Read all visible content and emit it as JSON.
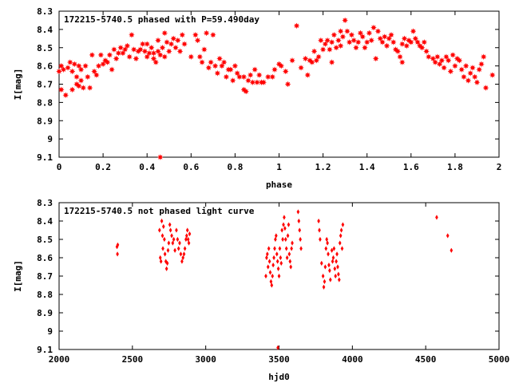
{
  "chart_data": [
    {
      "type": "scatter",
      "title": "172215-5740.5 phased with P=59.490day",
      "xlabel": "phase",
      "ylabel": "I[mag]",
      "xlim": [
        0,
        2
      ],
      "ylim": [
        9.1,
        8.3
      ],
      "y_inverted": true,
      "xticks": [
        "0",
        "0.2",
        "0.4",
        "0.6",
        "0.8",
        "1",
        "1.2",
        "1.4",
        "1.6",
        "1.8",
        "2"
      ],
      "yticks": [
        "8.3",
        "8.4",
        "8.5",
        "8.6",
        "8.7",
        "8.8",
        "8.9",
        "9",
        "9.1"
      ],
      "marker": "star",
      "color": "#ff0000",
      "points": [
        [
          0.0,
          8.63
        ],
        [
          0.01,
          8.6
        ],
        [
          0.01,
          8.73
        ],
        [
          0.02,
          8.62
        ],
        [
          0.03,
          8.76
        ],
        [
          0.04,
          8.61
        ],
        [
          0.05,
          8.58
        ],
        [
          0.06,
          8.63
        ],
        [
          0.06,
          8.73
        ],
        [
          0.07,
          8.59
        ],
        [
          0.08,
          8.66
        ],
        [
          0.08,
          8.7
        ],
        [
          0.09,
          8.6
        ],
        [
          0.09,
          8.71
        ],
        [
          0.1,
          8.62
        ],
        [
          0.1,
          8.68
        ],
        [
          0.11,
          8.72
        ],
        [
          0.12,
          8.6
        ],
        [
          0.13,
          8.66
        ],
        [
          0.14,
          8.72
        ],
        [
          0.15,
          8.54
        ],
        [
          0.16,
          8.63
        ],
        [
          0.17,
          8.65
        ],
        [
          0.18,
          8.6
        ],
        [
          0.19,
          8.54
        ],
        [
          0.2,
          8.59
        ],
        [
          0.21,
          8.57
        ],
        [
          0.22,
          8.58
        ],
        [
          0.23,
          8.54
        ],
        [
          0.24,
          8.62
        ],
        [
          0.25,
          8.51
        ],
        [
          0.26,
          8.56
        ],
        [
          0.27,
          8.53
        ],
        [
          0.28,
          8.5
        ],
        [
          0.29,
          8.53
        ],
        [
          0.3,
          8.51
        ],
        [
          0.31,
          8.49
        ],
        [
          0.32,
          8.55
        ],
        [
          0.33,
          8.43
        ],
        [
          0.34,
          8.51
        ],
        [
          0.35,
          8.56
        ],
        [
          0.36,
          8.52
        ],
        [
          0.37,
          8.51
        ],
        [
          0.38,
          8.48
        ],
        [
          0.39,
          8.52
        ],
        [
          0.4,
          8.55
        ],
        [
          0.4,
          8.48
        ],
        [
          0.41,
          8.53
        ],
        [
          0.42,
          8.5
        ],
        [
          0.43,
          8.56
        ],
        [
          0.43,
          8.53
        ],
        [
          0.44,
          8.58
        ],
        [
          0.45,
          8.52
        ],
        [
          0.45,
          8.46
        ],
        [
          0.46,
          8.54
        ],
        [
          0.46,
          9.1
        ],
        [
          0.47,
          8.5
        ],
        [
          0.48,
          8.42
        ],
        [
          0.48,
          8.55
        ],
        [
          0.49,
          8.47
        ],
        [
          0.5,
          8.52
        ],
        [
          0.51,
          8.48
        ],
        [
          0.52,
          8.45
        ],
        [
          0.53,
          8.5
        ],
        [
          0.54,
          8.46
        ],
        [
          0.55,
          8.52
        ],
        [
          0.56,
          8.43
        ],
        [
          0.57,
          8.48
        ],
        [
          0.6,
          8.55
        ],
        [
          0.62,
          8.43
        ],
        [
          0.63,
          8.46
        ],
        [
          0.64,
          8.55
        ],
        [
          0.65,
          8.58
        ],
        [
          0.66,
          8.51
        ],
        [
          0.67,
          8.42
        ],
        [
          0.68,
          8.61
        ],
        [
          0.69,
          8.58
        ],
        [
          0.7,
          8.43
        ],
        [
          0.71,
          8.6
        ],
        [
          0.72,
          8.64
        ],
        [
          0.73,
          8.56
        ],
        [
          0.74,
          8.6
        ],
        [
          0.75,
          8.58
        ],
        [
          0.76,
          8.66
        ],
        [
          0.77,
          8.62
        ],
        [
          0.78,
          8.62
        ],
        [
          0.79,
          8.68
        ],
        [
          0.8,
          8.6
        ],
        [
          0.81,
          8.64
        ],
        [
          0.82,
          8.66
        ],
        [
          0.84,
          8.66
        ],
        [
          0.84,
          8.73
        ],
        [
          0.85,
          8.74
        ],
        [
          0.86,
          8.68
        ],
        [
          0.87,
          8.65
        ],
        [
          0.88,
          8.69
        ],
        [
          0.89,
          8.62
        ],
        [
          0.9,
          8.69
        ],
        [
          0.91,
          8.65
        ],
        [
          0.92,
          8.69
        ],
        [
          0.93,
          8.69
        ],
        [
          0.95,
          8.66
        ],
        [
          0.97,
          8.66
        ],
        [
          0.98,
          8.62
        ],
        [
          1.0,
          8.59
        ],
        [
          1.01,
          8.6
        ],
        [
          1.03,
          8.63
        ],
        [
          1.04,
          8.7
        ],
        [
          1.06,
          8.57
        ],
        [
          1.08,
          8.38
        ],
        [
          1.1,
          8.61
        ],
        [
          1.12,
          8.56
        ],
        [
          1.13,
          8.65
        ],
        [
          1.14,
          8.57
        ],
        [
          1.15,
          8.58
        ],
        [
          1.16,
          8.52
        ],
        [
          1.17,
          8.57
        ],
        [
          1.18,
          8.55
        ],
        [
          1.19,
          8.46
        ],
        [
          1.2,
          8.51
        ],
        [
          1.21,
          8.48
        ],
        [
          1.22,
          8.46
        ],
        [
          1.23,
          8.51
        ],
        [
          1.24,
          8.47
        ],
        [
          1.24,
          8.58
        ],
        [
          1.25,
          8.43
        ],
        [
          1.26,
          8.5
        ],
        [
          1.27,
          8.46
        ],
        [
          1.28,
          8.41
        ],
        [
          1.28,
          8.49
        ],
        [
          1.29,
          8.44
        ],
        [
          1.3,
          8.35
        ],
        [
          1.31,
          8.41
        ],
        [
          1.32,
          8.47
        ],
        [
          1.33,
          8.43
        ],
        [
          1.34,
          8.46
        ],
        [
          1.35,
          8.5
        ],
        [
          1.36,
          8.47
        ],
        [
          1.37,
          8.42
        ],
        [
          1.38,
          8.44
        ],
        [
          1.39,
          8.5
        ],
        [
          1.4,
          8.47
        ],
        [
          1.41,
          8.42
        ],
        [
          1.42,
          8.46
        ],
        [
          1.43,
          8.39
        ],
        [
          1.44,
          8.56
        ],
        [
          1.45,
          8.41
        ],
        [
          1.46,
          8.45
        ],
        [
          1.47,
          8.47
        ],
        [
          1.48,
          8.44
        ],
        [
          1.49,
          8.49
        ],
        [
          1.5,
          8.45
        ],
        [
          1.51,
          8.43
        ],
        [
          1.52,
          8.47
        ],
        [
          1.53,
          8.51
        ],
        [
          1.54,
          8.52
        ],
        [
          1.55,
          8.55
        ],
        [
          1.56,
          8.48
        ],
        [
          1.56,
          8.58
        ],
        [
          1.57,
          8.45
        ],
        [
          1.58,
          8.49
        ],
        [
          1.59,
          8.46
        ],
        [
          1.6,
          8.47
        ],
        [
          1.61,
          8.41
        ],
        [
          1.62,
          8.45
        ],
        [
          1.63,
          8.47
        ],
        [
          1.64,
          8.49
        ],
        [
          1.65,
          8.5
        ],
        [
          1.66,
          8.47
        ],
        [
          1.67,
          8.52
        ],
        [
          1.68,
          8.55
        ],
        [
          1.7,
          8.56
        ],
        [
          1.71,
          8.58
        ],
        [
          1.72,
          8.55
        ],
        [
          1.73,
          8.59
        ],
        [
          1.74,
          8.57
        ],
        [
          1.75,
          8.61
        ],
        [
          1.76,
          8.55
        ],
        [
          1.77,
          8.57
        ],
        [
          1.78,
          8.63
        ],
        [
          1.79,
          8.54
        ],
        [
          1.8,
          8.6
        ],
        [
          1.81,
          8.56
        ],
        [
          1.82,
          8.57
        ],
        [
          1.83,
          8.62
        ],
        [
          1.84,
          8.66
        ],
        [
          1.85,
          8.6
        ],
        [
          1.86,
          8.68
        ],
        [
          1.87,
          8.64
        ],
        [
          1.88,
          8.61
        ],
        [
          1.89,
          8.66
        ],
        [
          1.9,
          8.69
        ],
        [
          1.91,
          8.62
        ],
        [
          1.92,
          8.59
        ],
        [
          1.93,
          8.55
        ],
        [
          1.94,
          8.72
        ],
        [
          1.97,
          8.65
        ]
      ]
    },
    {
      "type": "scatter",
      "title": "172215-5740.5 not phased light curve",
      "xlabel": "hjd0",
      "ylabel": "I[mag]",
      "xlim": [
        2000,
        5000
      ],
      "ylim": [
        9.1,
        8.3
      ],
      "y_inverted": true,
      "xticks": [
        "2000",
        "2500",
        "3000",
        "3500",
        "4000",
        "4500",
        "5000"
      ],
      "yticks": [
        "8.3",
        "8.4",
        "8.5",
        "8.6",
        "8.7",
        "8.8",
        "8.9",
        "9",
        "9.1"
      ],
      "marker": "diamond",
      "color": "#ff0000",
      "points": [
        [
          2395,
          8.54
        ],
        [
          2398,
          8.58
        ],
        [
          2400,
          8.53
        ],
        [
          2685,
          8.45
        ],
        [
          2690,
          8.6
        ],
        [
          2695,
          8.62
        ],
        [
          2700,
          8.4
        ],
        [
          2705,
          8.48
        ],
        [
          2708,
          8.55
        ],
        [
          2712,
          8.43
        ],
        [
          2718,
          8.5
        ],
        [
          2722,
          8.58
        ],
        [
          2728,
          8.62
        ],
        [
          2733,
          8.66
        ],
        [
          2738,
          8.63
        ],
        [
          2743,
          8.56
        ],
        [
          2748,
          8.52
        ],
        [
          2755,
          8.42
        ],
        [
          2760,
          8.45
        ],
        [
          2768,
          8.48
        ],
        [
          2775,
          8.52
        ],
        [
          2782,
          8.5
        ],
        [
          2790,
          8.56
        ],
        [
          2800,
          8.45
        ],
        [
          2808,
          8.5
        ],
        [
          2815,
          8.55
        ],
        [
          2822,
          8.52
        ],
        [
          2830,
          8.58
        ],
        [
          2838,
          8.62
        ],
        [
          2845,
          8.6
        ],
        [
          2852,
          8.58
        ],
        [
          2858,
          8.55
        ],
        [
          2865,
          8.5
        ],
        [
          2870,
          8.48
        ],
        [
          2875,
          8.45
        ],
        [
          2880,
          8.5
        ],
        [
          2885,
          8.52
        ],
        [
          2890,
          8.47
        ],
        [
          3410,
          8.7
        ],
        [
          3415,
          8.6
        ],
        [
          3420,
          8.58
        ],
        [
          3425,
          8.65
        ],
        [
          3430,
          8.55
        ],
        [
          3435,
          8.62
        ],
        [
          3440,
          8.68
        ],
        [
          3445,
          8.73
        ],
        [
          3450,
          8.75
        ],
        [
          3455,
          8.7
        ],
        [
          3460,
          8.64
        ],
        [
          3465,
          8.6
        ],
        [
          3470,
          8.55
        ],
        [
          3475,
          8.5
        ],
        [
          3480,
          8.48
        ],
        [
          3485,
          8.58
        ],
        [
          3490,
          8.62
        ],
        [
          3492,
          9.09
        ],
        [
          3495,
          8.66
        ],
        [
          3500,
          8.7
        ],
        [
          3505,
          8.55
        ],
        [
          3510,
          8.6
        ],
        [
          3515,
          8.63
        ],
        [
          3520,
          8.45
        ],
        [
          3525,
          8.5
        ],
        [
          3530,
          8.42
        ],
        [
          3535,
          8.38
        ],
        [
          3540,
          8.44
        ],
        [
          3545,
          8.5
        ],
        [
          3550,
          8.55
        ],
        [
          3555,
          8.6
        ],
        [
          3560,
          8.48
        ],
        [
          3565,
          8.42
        ],
        [
          3570,
          8.58
        ],
        [
          3575,
          8.62
        ],
        [
          3580,
          8.65
        ],
        [
          3585,
          8.55
        ],
        [
          3590,
          8.52
        ],
        [
          3630,
          8.35
        ],
        [
          3635,
          8.4
        ],
        [
          3640,
          8.45
        ],
        [
          3645,
          8.5
        ],
        [
          3650,
          8.55
        ],
        [
          3770,
          8.4
        ],
        [
          3775,
          8.45
        ],
        [
          3780,
          8.5
        ],
        [
          3790,
          8.63
        ],
        [
          3800,
          8.7
        ],
        [
          3805,
          8.76
        ],
        [
          3810,
          8.73
        ],
        [
          3815,
          8.65
        ],
        [
          3820,
          8.55
        ],
        [
          3825,
          8.5
        ],
        [
          3830,
          8.52
        ],
        [
          3835,
          8.58
        ],
        [
          3840,
          8.64
        ],
        [
          3845,
          8.67
        ],
        [
          3850,
          8.72
        ],
        [
          3860,
          8.56
        ],
        [
          3865,
          8.62
        ],
        [
          3870,
          8.6
        ],
        [
          3875,
          8.55
        ],
        [
          3880,
          8.66
        ],
        [
          3885,
          8.7
        ],
        [
          3890,
          8.62
        ],
        [
          3895,
          8.58
        ],
        [
          3900,
          8.65
        ],
        [
          3905,
          8.69
        ],
        [
          3910,
          8.72
        ],
        [
          3915,
          8.52
        ],
        [
          3920,
          8.48
        ],
        [
          3925,
          8.45
        ],
        [
          3930,
          8.55
        ],
        [
          3935,
          8.42
        ],
        [
          4575,
          8.38
        ],
        [
          4650,
          8.48
        ],
        [
          4675,
          8.56
        ]
      ]
    }
  ]
}
